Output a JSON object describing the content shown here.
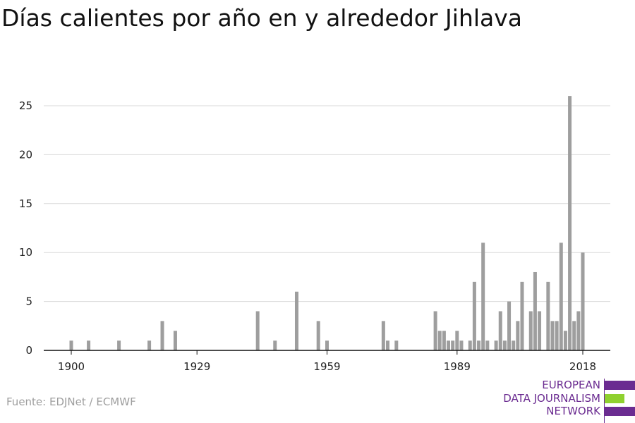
{
  "header": {
    "title": "Días calientes por año en y alrededor Jihlava"
  },
  "footer": {
    "source": "Fuente: EDJNet / ECMWF",
    "logo_lines": [
      "EUROPEAN",
      "DATA JOURNALISM",
      "NETWORK"
    ]
  },
  "colors": {
    "bar": "#9e9e9e",
    "grid": "#d9d9d9",
    "axis": "#111111",
    "brand": "#6b2c91",
    "accent": "#8fd12f"
  },
  "chart_data": {
    "type": "bar",
    "title": "Días calientes por año en y alrededor Jihlava",
    "xlabel": "",
    "ylabel": "",
    "xlim": [
      1900,
      2018
    ],
    "ylim": [
      0,
      25
    ],
    "x_ticks": [
      1900,
      1929,
      1959,
      1989,
      2018
    ],
    "y_ticks": [
      0,
      5,
      10,
      15,
      20,
      25
    ],
    "grid": true,
    "x": [
      1900,
      1904,
      1911,
      1918,
      1921,
      1924,
      1943,
      1947,
      1952,
      1957,
      1959,
      1972,
      1973,
      1975,
      1984,
      1985,
      1986,
      1987,
      1988,
      1989,
      1990,
      1992,
      1993,
      1994,
      1995,
      1996,
      1998,
      1999,
      2000,
      2001,
      2002,
      2003,
      2004,
      2006,
      2007,
      2008,
      2010,
      2011,
      2012,
      2013,
      2014,
      2015,
      2016,
      2017,
      2018
    ],
    "values": [
      1,
      1,
      1,
      1,
      3,
      2,
      4,
      1,
      6,
      3,
      1,
      3,
      1,
      1,
      4,
      2,
      2,
      1,
      1,
      2,
      1,
      1,
      7,
      1,
      11,
      1,
      1,
      4,
      1,
      5,
      1,
      3,
      7,
      4,
      8,
      4,
      7,
      3,
      3,
      11,
      2,
      26,
      3,
      4,
      10
    ]
  }
}
